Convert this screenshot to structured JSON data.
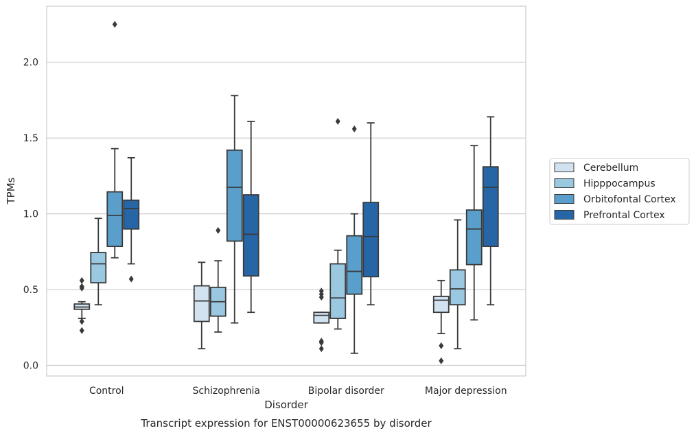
{
  "chart_data": {
    "type": "box",
    "caption": "Transcript expression for ENST00000623655 by disorder",
    "xlabel": "Disorder",
    "ylabel": "TPMs",
    "ylim": [
      -0.07,
      2.37
    ],
    "yticks": [
      0.0,
      0.5,
      1.0,
      1.5,
      2.0
    ],
    "ytick_labels": [
      "0.0",
      "0.5",
      "1.0",
      "1.5",
      "2.0"
    ],
    "grid": "horizontal",
    "legend_position": "right",
    "categories": [
      "Control",
      "Schizophrenia",
      "Bipolar disorder",
      "Major depression"
    ],
    "series": [
      {
        "name": "Cerebellum",
        "color": "#d1e2f1",
        "boxes": [
          {
            "whislo": 0.31,
            "q1": 0.37,
            "med": 0.385,
            "q3": 0.405,
            "whishi": 0.42,
            "fliers": [
              0.56,
              0.52,
              0.51,
              0.29,
              0.23
            ]
          },
          {
            "whislo": 0.11,
            "q1": 0.29,
            "med": 0.425,
            "q3": 0.525,
            "whishi": 0.68,
            "fliers": []
          },
          {
            "whislo": 0.28,
            "q1": 0.28,
            "med": 0.33,
            "q3": 0.35,
            "whishi": 0.35,
            "fliers": [
              0.49,
              0.47,
              0.45,
              0.16,
              0.15,
              0.11
            ]
          },
          {
            "whislo": 0.21,
            "q1": 0.35,
            "med": 0.43,
            "q3": 0.455,
            "whishi": 0.56,
            "fliers": [
              0.13,
              0.03
            ]
          }
        ]
      },
      {
        "name": "Hipppocampus",
        "color": "#9ac8e0",
        "boxes": [
          {
            "whislo": 0.4,
            "q1": 0.545,
            "med": 0.67,
            "q3": 0.745,
            "whishi": 0.97,
            "fliers": []
          },
          {
            "whislo": 0.22,
            "q1": 0.325,
            "med": 0.42,
            "q3": 0.515,
            "whishi": 0.69,
            "fliers": [
              0.89
            ]
          },
          {
            "whislo": 0.24,
            "q1": 0.31,
            "med": 0.445,
            "q3": 0.67,
            "whishi": 0.76,
            "fliers": [
              1.61
            ]
          },
          {
            "whislo": 0.11,
            "q1": 0.4,
            "med": 0.505,
            "q3": 0.63,
            "whishi": 0.96,
            "fliers": []
          }
        ]
      },
      {
        "name": "Orbitofontal Cortex",
        "color": "#5a9fcc",
        "boxes": [
          {
            "whislo": 0.71,
            "q1": 0.785,
            "med": 0.99,
            "q3": 1.145,
            "whishi": 1.43,
            "fliers": [
              2.25
            ]
          },
          {
            "whislo": 0.28,
            "q1": 0.82,
            "med": 1.175,
            "q3": 1.42,
            "whishi": 1.78,
            "fliers": []
          },
          {
            "whislo": 0.08,
            "q1": 0.47,
            "med": 0.62,
            "q3": 0.855,
            "whishi": 1.0,
            "fliers": [
              1.56
            ]
          },
          {
            "whislo": 0.3,
            "q1": 0.665,
            "med": 0.9,
            "q3": 1.025,
            "whishi": 1.45,
            "fliers": []
          }
        ]
      },
      {
        "name": "Prefrontal Cortex",
        "color": "#2666a6",
        "boxes": [
          {
            "whislo": 0.67,
            "q1": 0.9,
            "med": 1.035,
            "q3": 1.09,
            "whishi": 1.37,
            "fliers": [
              0.57
            ]
          },
          {
            "whislo": 0.35,
            "q1": 0.59,
            "med": 0.865,
            "q3": 1.125,
            "whishi": 1.61,
            "fliers": []
          },
          {
            "whislo": 0.4,
            "q1": 0.585,
            "med": 0.85,
            "q3": 1.075,
            "whishi": 1.6,
            "fliers": []
          },
          {
            "whislo": 0.4,
            "q1": 0.785,
            "med": 1.175,
            "q3": 1.31,
            "whishi": 1.64,
            "fliers": []
          }
        ]
      }
    ]
  }
}
